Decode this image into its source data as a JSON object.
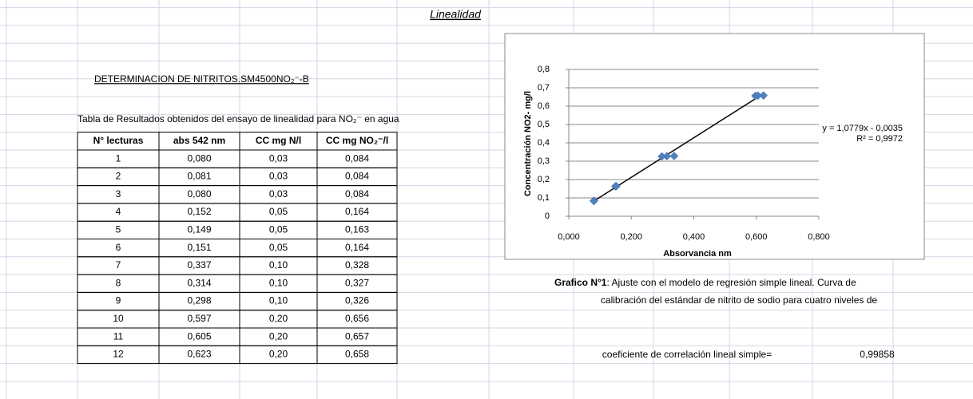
{
  "title": "Linealidad",
  "heading": "DETERMINACION DE NITRITOS.SM4500NO₂⁻-B",
  "table": {
    "caption": "Tabla de  Resultados obtenidos del ensayo de linealidad para NO₂⁻ en agua",
    "headers": [
      "N° lecturas",
      "abs 542 nm",
      "CC mg N/l",
      "CC mg NO₂⁻/l"
    ],
    "rows": [
      [
        "1",
        "0,080",
        "0,03",
        "0,084"
      ],
      [
        "2",
        "0,081",
        "0,03",
        "0,084"
      ],
      [
        "3",
        "0,080",
        "0,03",
        "0,084"
      ],
      [
        "4",
        "0,152",
        "0,05",
        "0,164"
      ],
      [
        "5",
        "0,149",
        "0,05",
        "0,163"
      ],
      [
        "6",
        "0,151",
        "0,05",
        "0,164"
      ],
      [
        "7",
        "0,337",
        "0,10",
        "0,328"
      ],
      [
        "8",
        "0,314",
        "0,10",
        "0,327"
      ],
      [
        "9",
        "0,298",
        "0,10",
        "0,326"
      ],
      [
        "10",
        "0,597",
        "0,20",
        "0,656"
      ],
      [
        "11",
        "0,605",
        "0,20",
        "0,657"
      ],
      [
        "12",
        "0,623",
        "0,20",
        "0,658"
      ]
    ]
  },
  "chart_data": {
    "type": "scatter",
    "x_label": "Absorvancia nm",
    "y_label": "Concentración NO2- mg/l",
    "x": [
      0.08,
      0.081,
      0.08,
      0.152,
      0.149,
      0.151,
      0.337,
      0.314,
      0.298,
      0.597,
      0.605,
      0.623
    ],
    "values": [
      0.084,
      0.084,
      0.084,
      0.164,
      0.163,
      0.164,
      0.328,
      0.327,
      0.326,
      0.656,
      0.657,
      0.658
    ],
    "color": "#4f81bd",
    "xlim": [
      0,
      0.8
    ],
    "ylim": [
      0,
      0.8
    ],
    "xticks": [
      {
        "value": 0,
        "label": "0,000"
      },
      {
        "value": 0.2,
        "label": "0,200"
      },
      {
        "value": 0.4,
        "label": "0,400"
      },
      {
        "value": 0.6,
        "label": "0,600"
      },
      {
        "value": 0.8,
        "label": "0,800"
      }
    ],
    "yticks": [
      0,
      {
        "value": 0.1,
        "label": "0,1"
      },
      {
        "value": 0.2,
        "label": "0,2"
      },
      {
        "value": 0.3,
        "label": "0,3"
      },
      {
        "value": 0.4,
        "label": "0,4"
      },
      {
        "value": 0.5,
        "label": "0,5"
      },
      {
        "value": 0.6,
        "label": "0,6"
      },
      {
        "value": 0.7,
        "label": "0,7"
      },
      {
        "value": 0.8,
        "label": "0,8"
      }
    ],
    "grid": true,
    "trendline": {
      "slope": 1.0779,
      "intercept": -0.0035,
      "label": "y = 1,0779x - 0,0035",
      "r2_label": "R² = 0,9972"
    }
  },
  "figure_caption": {
    "bold": "Grafico N°1",
    "lines": [
      ": Ajuste con el modelo de regresión simple lineal. Curva de",
      "calibración del estándar de nitrito de sodio para cuatro niveles de"
    ]
  },
  "correlation": {
    "label": "coeficiente  de correlación lineal simple=",
    "value": "0,99858"
  }
}
